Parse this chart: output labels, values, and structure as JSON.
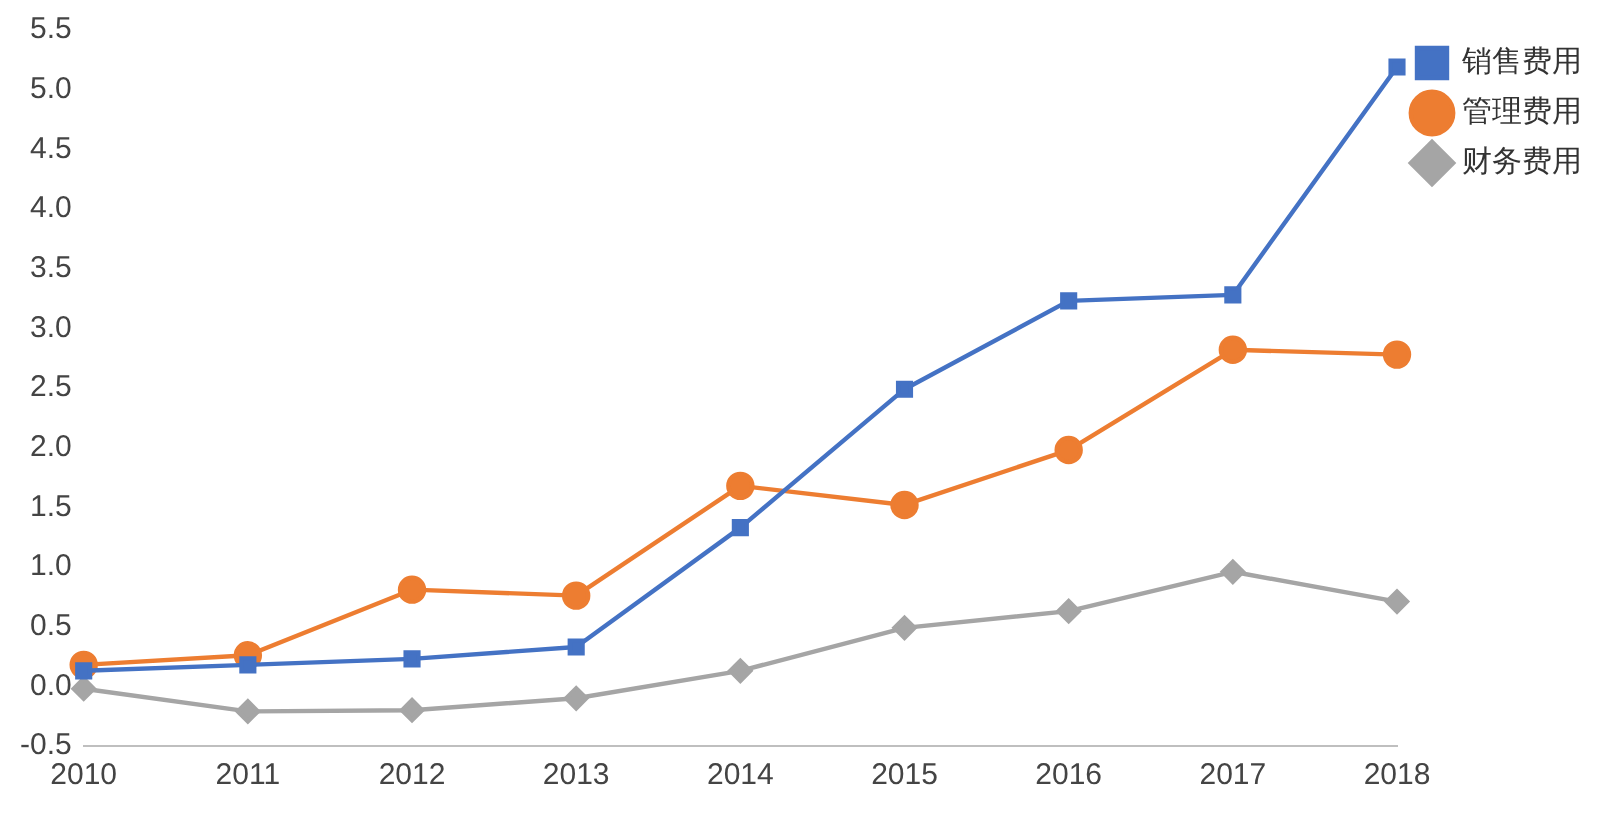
{
  "chart_data": {
    "type": "line",
    "categories": [
      "2010",
      "2011",
      "2012",
      "2013",
      "2014",
      "2015",
      "2016",
      "2017",
      "2018"
    ],
    "series": [
      {
        "name": "销售费用",
        "color": "#4472c4",
        "marker": "square",
        "values": [
          0.13,
          0.18,
          0.23,
          0.33,
          1.33,
          2.49,
          3.23,
          3.28,
          5.19
        ]
      },
      {
        "name": "管理费用",
        "color": "#ed7d31",
        "marker": "circle",
        "values": [
          0.18,
          0.26,
          0.81,
          0.76,
          1.68,
          1.52,
          1.98,
          2.82,
          2.78
        ]
      },
      {
        "name": "财务费用",
        "color": "#a5a5a5",
        "marker": "diamond",
        "values": [
          -0.02,
          -0.21,
          -0.2,
          -0.1,
          0.13,
          0.49,
          0.63,
          0.96,
          0.71
        ]
      }
    ],
    "ylim": [
      -0.5,
      5.5
    ],
    "yticks": [
      {
        "value": -0.5,
        "label": "-0.5"
      },
      {
        "value": 0,
        "label": "0.0"
      },
      {
        "value": 0.5,
        "label": "0.5"
      },
      {
        "value": 1,
        "label": "1.0"
      },
      {
        "value": 1.5,
        "label": "1.5"
      },
      {
        "value": 2,
        "label": "2.0"
      },
      {
        "value": 2.5,
        "label": "2.5"
      },
      {
        "value": 3,
        "label": "3.0"
      },
      {
        "value": 3.5,
        "label": "3.5"
      },
      {
        "value": 4,
        "label": "4.0"
      },
      {
        "value": 4.5,
        "label": "4.5"
      },
      {
        "value": 5,
        "label": "5.0"
      },
      {
        "value": 5.5,
        "label": "5.5"
      }
    ],
    "grid": false,
    "legend": "top right",
    "line_style": "solid"
  }
}
